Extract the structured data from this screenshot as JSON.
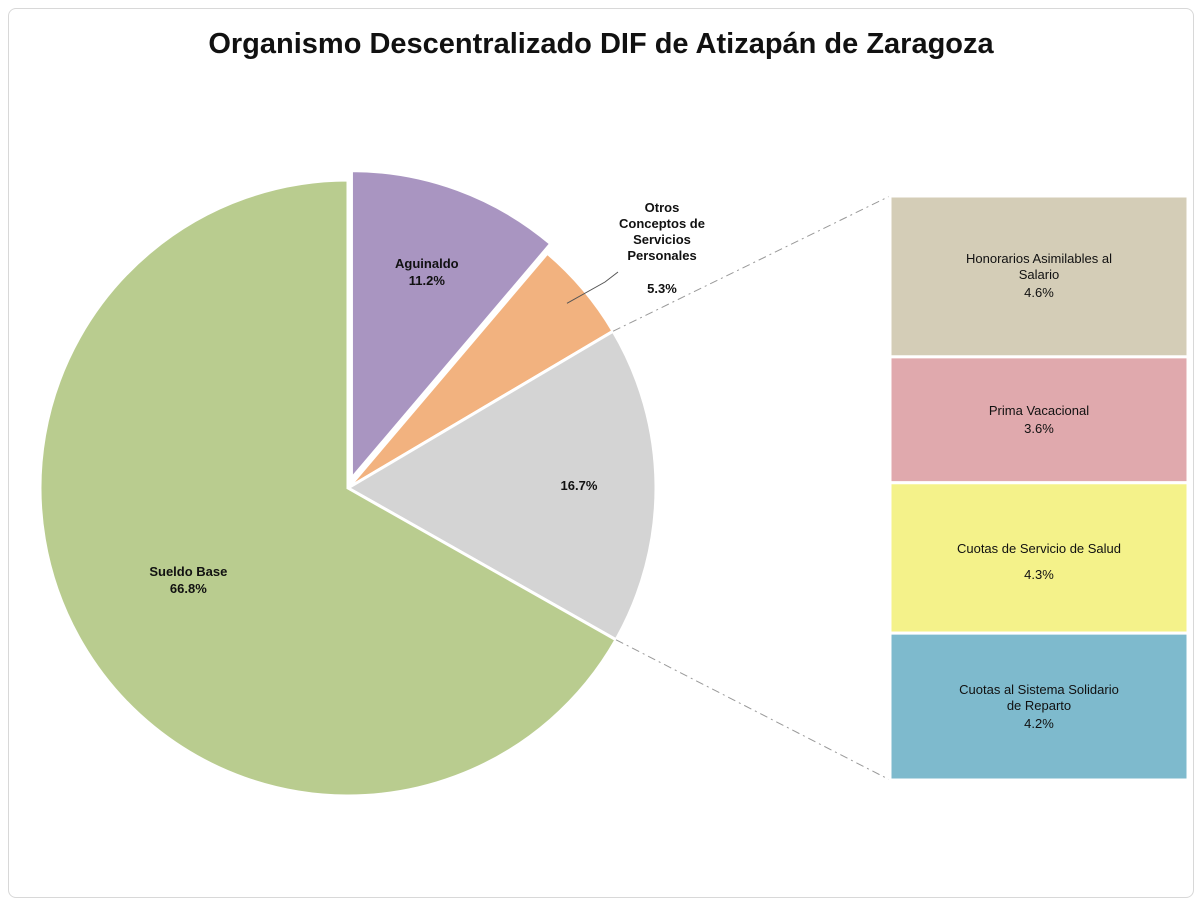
{
  "chart_data": {
    "type": "pie-of-bar",
    "title": "Organismo Descentralizado DIF de Atizapán de Zaragoza",
    "categories": [
      "Aguinaldo",
      "Otros Conceptos de Servicios Personales",
      null,
      "Sueldo Base"
    ],
    "values": [
      11.2,
      5.3,
      16.7,
      66.8
    ],
    "value_labels": [
      "11.2%",
      "5.3%",
      "16.7%",
      "66.8%"
    ],
    "colors": [
      "#a995c1",
      "#f2b27f",
      "#d4d4d4",
      "#b9cc8f"
    ],
    "breakdown": {
      "categories": [
        "Honorarios Asimilables al Salario",
        "Prima Vacacional",
        "Cuotas de Servicio de Salud",
        "Cuotas al Sistema Solidario de Reparto"
      ],
      "values": [
        4.6,
        3.6,
        4.3,
        4.2
      ],
      "value_labels": [
        "4.6%",
        "3.6%",
        "4.3%",
        "4.2%"
      ],
      "colors": [
        "#d4cdb7",
        "#e0a9ad",
        "#f4f28a",
        "#7ebacd"
      ]
    }
  }
}
